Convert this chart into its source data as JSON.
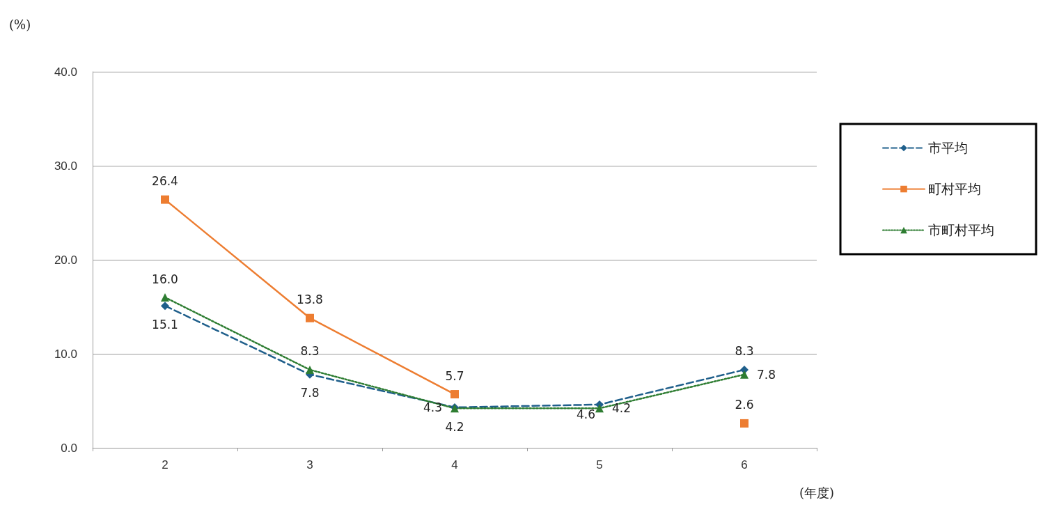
{
  "chart_data": {
    "type": "line",
    "ylabel": "(%)",
    "xlabel": "(年度)",
    "categories": [
      "2",
      "3",
      "4",
      "5",
      "6"
    ],
    "ylim": [
      0,
      40
    ],
    "yticks": [
      {
        "value": 0,
        "label": "0.0"
      },
      {
        "value": 10,
        "label": "10.0"
      },
      {
        "value": 20,
        "label": "20.0"
      },
      {
        "value": 30,
        "label": "30.0"
      },
      {
        "value": 40,
        "label": "40.0"
      }
    ],
    "grid": "y",
    "legend": "right",
    "data_labels": true,
    "series": [
      {
        "name": "市平均",
        "color": "#1f5f8b",
        "marker": "diamond",
        "line_style": "dashed",
        "values": [
          15.1,
          7.8,
          4.3,
          4.6,
          8.3
        ],
        "value_labels": [
          "15.1",
          "7.8",
          "4.3",
          "4.6",
          "8.3"
        ]
      },
      {
        "name": "町村平均",
        "color": "#ed7d31",
        "marker": "square",
        "line_style": "solid",
        "values": [
          26.4,
          13.8,
          5.7,
          null,
          2.6
        ],
        "value_labels": [
          "26.4",
          "13.8",
          "5.7",
          null,
          "2.6"
        ]
      },
      {
        "name": "市町村平均",
        "color": "#2e7d32",
        "marker": "triangle",
        "line_style": "dotted",
        "values": [
          16.0,
          8.3,
          4.2,
          4.2,
          7.8
        ],
        "value_labels": [
          "16.0",
          "8.3",
          "4.2",
          "4.2",
          "7.8"
        ]
      }
    ]
  }
}
